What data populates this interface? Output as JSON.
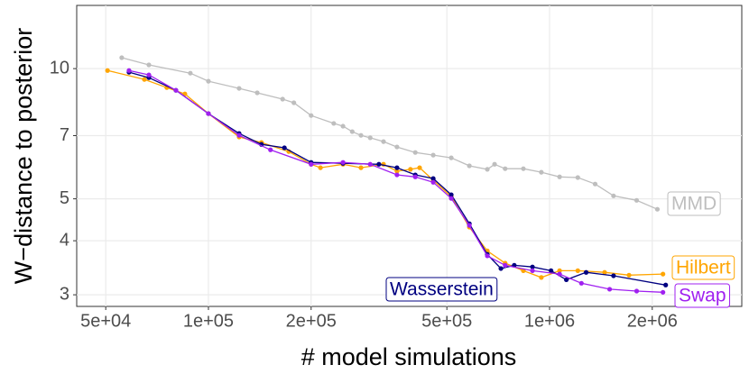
{
  "chart_data": {
    "type": "line",
    "xlabel": "# model simulations",
    "ylabel": "W−distance to posterior",
    "xscale": "log",
    "yscale": "log",
    "grid": true,
    "xlim": [
      41100,
      3660000
    ],
    "ylim": [
      2.82,
      14.0
    ],
    "xticks": [
      {
        "value": 50000,
        "label": "5e+04"
      },
      {
        "value": 100000,
        "label": "1e+05"
      },
      {
        "value": 200000,
        "label": "2e+05"
      },
      {
        "value": 500000,
        "label": "5e+05"
      },
      {
        "value": 1000000,
        "label": "1e+06"
      },
      {
        "value": 2000000,
        "label": "2e+06"
      }
    ],
    "yticks": [
      3,
      4,
      5,
      7,
      10
    ],
    "series": [
      {
        "name": "MMD",
        "color": "#bebebe",
        "x": [
          55700,
          66900,
          88500,
          100000,
          123000,
          139000,
          165000,
          178000,
          200000,
          233000,
          248000,
          264000,
          280000,
          298000,
          326000,
          357000,
          404000,
          456000,
          515000,
          582000,
          657000,
          690000,
          741000,
          838000,
          946000,
          1070000,
          1210000,
          1360000,
          1540000,
          1800000,
          2070000
        ],
        "values": [
          10.6,
          10.2,
          9.76,
          9.35,
          9.0,
          8.79,
          8.5,
          8.34,
          7.79,
          7.47,
          7.36,
          7.15,
          7.01,
          6.92,
          6.78,
          6.59,
          6.4,
          6.31,
          6.22,
          5.96,
          5.85,
          6.01,
          5.87,
          5.87,
          5.76,
          5.62,
          5.6,
          5.41,
          5.08,
          4.96,
          4.73
        ]
      },
      {
        "name": "Hilbert",
        "color": "#ffa500",
        "x": [
          50600,
          64900,
          75500,
          85300,
          100000,
          123000,
          143000,
          172000,
          200000,
          213000,
          248000,
          280000,
          326000,
          357000,
          391000,
          416000,
          456000,
          515000,
          582000,
          657000,
          741000,
          838000,
          946000,
          1070000,
          1210000,
          1450000,
          1710000,
          2150000
        ],
        "values": [
          9.9,
          9.44,
          9.04,
          8.74,
          7.87,
          6.95,
          6.75,
          6.43,
          6.01,
          5.9,
          6.01,
          5.9,
          6.01,
          5.79,
          5.85,
          5.9,
          5.52,
          5.06,
          4.3,
          3.79,
          3.55,
          3.41,
          3.29,
          3.41,
          3.41,
          3.38,
          3.33,
          3.35
        ]
      },
      {
        "name": "Wasserstein",
        "color": "#000080",
        "x": [
          58500,
          66900,
          80300,
          100000,
          123000,
          143000,
          167000,
          200000,
          248000,
          316000,
          357000,
          404000,
          456000,
          515000,
          582000,
          657000,
          720000,
          788000,
          891000,
          1010000,
          1120000,
          1280000,
          1540000,
          2190000
        ],
        "values": [
          9.81,
          9.53,
          8.91,
          7.87,
          7.08,
          6.68,
          6.56,
          6.07,
          6.04,
          6.01,
          5.9,
          5.68,
          5.57,
          5.11,
          4.38,
          3.72,
          3.45,
          3.51,
          3.48,
          3.41,
          3.25,
          3.38,
          3.32,
          3.16
        ]
      },
      {
        "name": "Swap",
        "color": "#a020f0",
        "x": [
          58500,
          66900,
          80300,
          100000,
          123000,
          152000,
          200000,
          248000,
          298000,
          357000,
          404000,
          456000,
          515000,
          582000,
          657000,
          741000,
          891000,
          1070000,
          1240000,
          1500000,
          1800000,
          2150000
        ],
        "values": [
          9.9,
          9.67,
          8.91,
          7.87,
          7.01,
          6.49,
          6.01,
          6.07,
          6.01,
          5.68,
          5.62,
          5.46,
          5.01,
          4.34,
          3.69,
          3.51,
          3.41,
          3.35,
          3.19,
          3.09,
          3.06,
          3.04
        ]
      }
    ]
  }
}
